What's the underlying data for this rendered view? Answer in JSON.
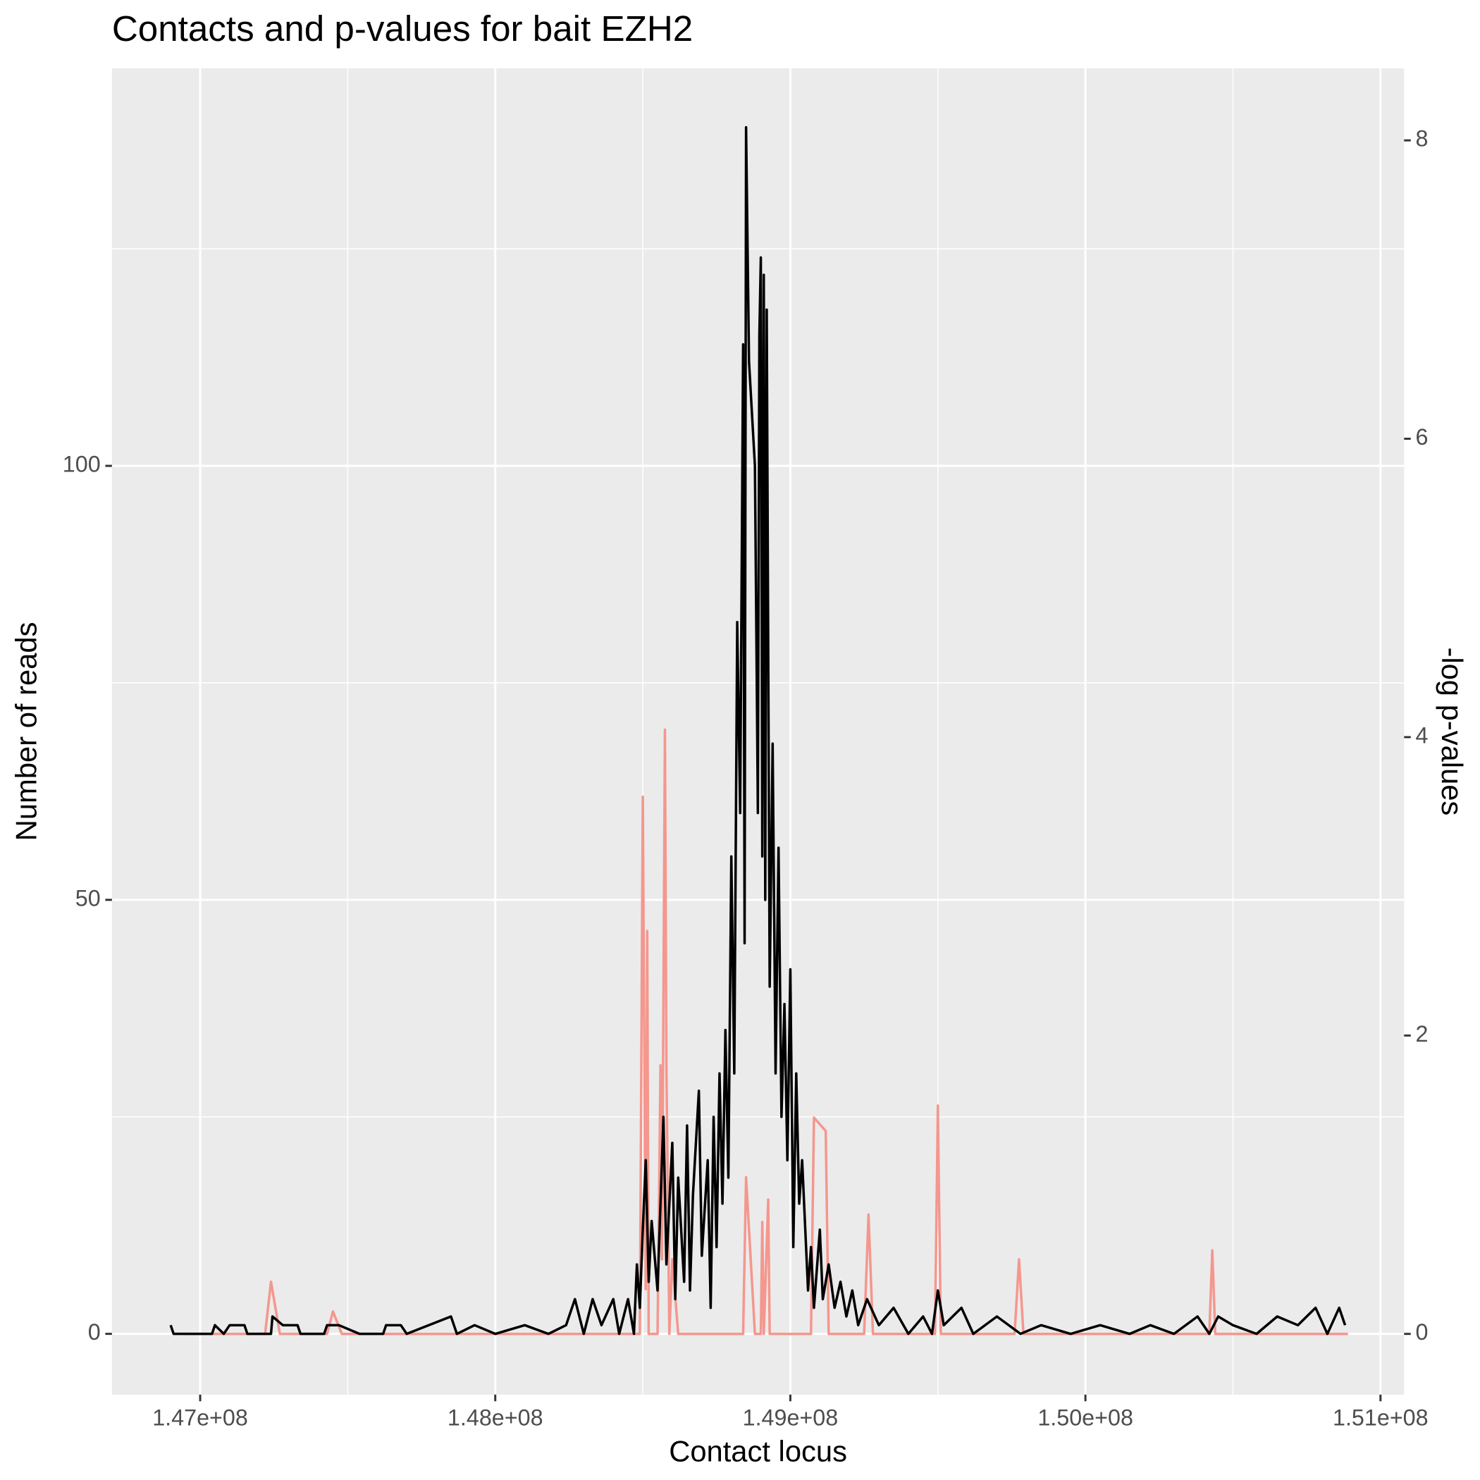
{
  "chart_data": {
    "type": "line",
    "title": "Contacts and p-values for bait EZH2",
    "x_label": "Contact locus",
    "y_label": "Number of reads",
    "y2_label": "-log p-values",
    "xlim": [
      146701000.0,
      151080000.0
    ],
    "xticks": [
      {
        "value": 147000000.0,
        "label": "1.47e+08"
      },
      {
        "value": 148000000.0,
        "label": "1.48e+08"
      },
      {
        "value": 149000000.0,
        "label": "1.49e+08"
      },
      {
        "value": 150000000.0,
        "label": "1.50e+08"
      },
      {
        "value": 151000000.0,
        "label": "1.51e+08"
      }
    ],
    "x_minor_ticks": [
      147500000.0,
      148500000.0,
      149500000.0,
      150500000.0
    ],
    "ylim": [
      -7,
      145.8
    ],
    "yticks": [
      0,
      50,
      100
    ],
    "y_minor_ticks": [
      25,
      75,
      125
    ],
    "y2lim": [
      -0.407,
      8.483
    ],
    "y2ticks": [
      0,
      2,
      4,
      6,
      8
    ],
    "grid": true,
    "series": [
      {
        "color": "#f4978e",
        "axis": "y2",
        "x": [
          146950000.0,
          147220000.0,
          147240000.0,
          147270000.0,
          147430000.0,
          147450000.0,
          147480000.0,
          148490000.0,
          148500000.0,
          148510000.0,
          148515000.0,
          148520000.0,
          148550000.0,
          148560000.0,
          148565000.0,
          148575000.0,
          148580000.0,
          148590000.0,
          148600000.0,
          148620000.0,
          148840000.0,
          148850000.0,
          148880000.0,
          148900000.0,
          148905000.0,
          148910000.0,
          148925000.0,
          148930000.0,
          149070000.0,
          149080000.0,
          149120000.0,
          149130000.0,
          149250000.0,
          149265000.0,
          149280000.0,
          149490000.0,
          149500000.0,
          149510000.0,
          149760000.0,
          149775000.0,
          149790000.0,
          150420000.0,
          150430000.0,
          150440000.0,
          150890000.0
        ],
        "values": [
          0,
          0,
          0.35,
          0,
          0,
          0.15,
          0,
          0,
          3.6,
          0.3,
          2.7,
          0,
          0,
          1.8,
          0.5,
          4.05,
          1.8,
          0,
          0.5,
          0,
          0,
          1.05,
          0,
          0,
          0.75,
          0,
          0.9,
          0,
          0,
          1.45,
          1.36,
          0,
          0,
          0.8,
          0,
          0,
          1.53,
          0,
          0,
          0.5,
          0,
          0,
          0.56,
          0,
          0
        ]
      },
      {
        "color": "#000000",
        "x": [
          146900000.0,
          146910000.0,
          147040000.0,
          147050000.0,
          147080000.0,
          147100000.0,
          147150000.0,
          147160000.0,
          147240000.0,
          147245000.0,
          147280000.0,
          147330000.0,
          147340000.0,
          147420000.0,
          147430000.0,
          147470000.0,
          147540000.0,
          147620000.0,
          147630000.0,
          147680000.0,
          147700000.0,
          147850000.0,
          147870000.0,
          147930000.0,
          148000000.0,
          148100000.0,
          148180000.0,
          148240000.0,
          148270000.0,
          148300000.0,
          148330000.0,
          148360000.0,
          148400000.0,
          148420000.0,
          148450000.0,
          148470000.0,
          148480000.0,
          148490000.0,
          148500000.0,
          148510000.0,
          148520000.0,
          148530000.0,
          148550000.0,
          148570000.0,
          148580000.0,
          148600000.0,
          148610000.0,
          148620000.0,
          148640000.0,
          148650000.0,
          148660000.0,
          148670000.0,
          148690000.0,
          148700000.0,
          148720000.0,
          148730000.0,
          148740000.0,
          148750000.0,
          148760000.0,
          148770000.0,
          148780000.0,
          148790000.0,
          148800000.0,
          148810000.0,
          148820000.0,
          148830000.0,
          148840000.0,
          148845000.0,
          148850000.0,
          148860000.0,
          148880000.0,
          148890000.0,
          148895000.0,
          148900000.0,
          148905000.0,
          148910000.0,
          148915000.0,
          148920000.0,
          148930000.0,
          148940000.0,
          148950000.0,
          148960000.0,
          148970000.0,
          148980000.0,
          148990000.0,
          149000000.0,
          149010000.0,
          149020000.0,
          149030000.0,
          149040000.0,
          149060000.0,
          149070000.0,
          149080000.0,
          149100000.0,
          149110000.0,
          149130000.0,
          149150000.0,
          149170000.0,
          149190000.0,
          149210000.0,
          149230000.0,
          149260000.0,
          149300000.0,
          149350000.0,
          149400000.0,
          149450000.0,
          149480000.0,
          149500000.0,
          149520000.0,
          149580000.0,
          149620000.0,
          149700000.0,
          149780000.0,
          149850000.0,
          149950000.0,
          150050000.0,
          150150000.0,
          150220000.0,
          150300000.0,
          150380000.0,
          150420000.0,
          150450000.0,
          150500000.0,
          150580000.0,
          150650000.0,
          150720000.0,
          150780000.0,
          150820000.0,
          150860000.0,
          150880000.0
        ],
        "values": [
          1,
          0,
          0,
          1,
          0,
          1,
          1,
          0,
          0,
          2,
          1,
          1,
          0,
          0,
          1,
          1,
          0,
          0,
          1,
          1,
          0,
          2,
          0,
          1,
          0,
          1,
          0,
          1,
          4,
          0,
          4,
          1,
          4,
          0,
          4,
          0,
          8,
          3,
          12,
          20,
          6,
          13,
          5,
          25,
          8,
          22,
          4,
          18,
          6,
          24,
          5,
          16,
          28,
          9,
          20,
          3,
          25,
          10,
          30,
          15,
          35,
          18,
          55,
          30,
          82,
          60,
          114,
          45,
          139,
          112,
          100,
          60,
          115,
          124,
          55,
          122,
          50,
          118,
          40,
          68,
          30,
          56,
          25,
          38,
          20,
          42,
          10,
          30,
          15,
          20,
          5,
          10,
          3,
          12,
          4,
          8,
          3,
          6,
          2,
          5,
          1,
          4,
          1,
          3,
          0,
          2,
          0,
          5,
          1,
          3,
          0,
          2,
          0,
          1,
          0,
          1,
          0,
          1,
          0,
          2,
          0,
          2,
          1,
          0,
          2,
          1,
          3,
          0,
          3,
          1
        ]
      }
    ]
  }
}
